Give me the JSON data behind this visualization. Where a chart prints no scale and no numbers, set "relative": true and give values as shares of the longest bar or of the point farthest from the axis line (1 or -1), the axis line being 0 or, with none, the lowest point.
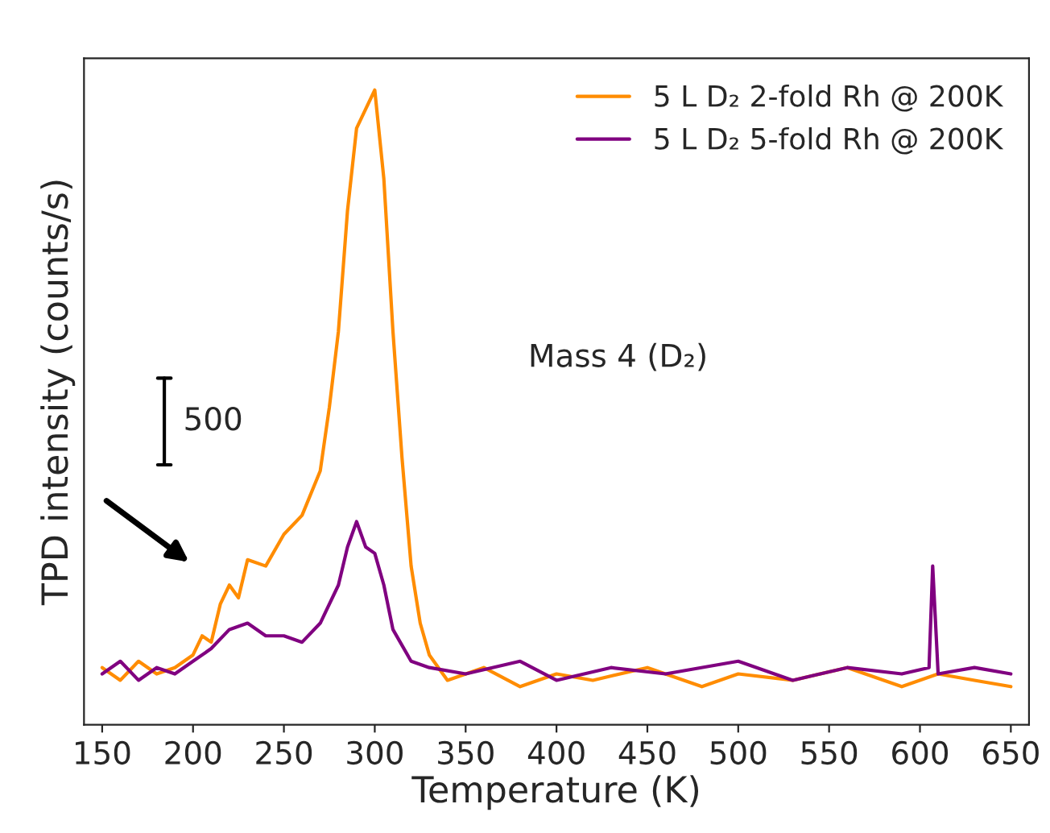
{
  "chart_data": {
    "type": "line",
    "relative": true,
    "xlabel": "Temperature (K)",
    "ylabel": "TPD intensity (counts/s)",
    "xlim": [
      140,
      660
    ],
    "xticks": [
      150,
      200,
      250,
      300,
      350,
      400,
      450,
      500,
      550,
      600,
      650
    ],
    "tick_labels": "x",
    "grid": false,
    "legend": "top right",
    "marker": "none",
    "line_style": "solid",
    "annotations": [
      "Mass 4 (D₂)",
      "500"
    ],
    "series": [
      {
        "name": "5 L D₂ 2-fold Rh @ 200K",
        "color": "#ff8c00",
        "x": [
          150,
          160,
          170,
          180,
          190,
          200,
          205,
          210,
          215,
          220,
          225,
          230,
          240,
          250,
          260,
          270,
          275,
          280,
          285,
          290,
          295,
          300,
          305,
          310,
          315,
          320,
          325,
          330,
          340,
          360,
          380,
          400,
          420,
          450,
          480,
          500,
          530,
          560,
          590,
          610,
          630,
          650
        ],
        "values": [
          0.09,
          0.07,
          0.1,
          0.08,
          0.09,
          0.11,
          0.14,
          0.13,
          0.19,
          0.22,
          0.2,
          0.26,
          0.25,
          0.3,
          0.33,
          0.4,
          0.5,
          0.62,
          0.81,
          0.94,
          0.97,
          1.0,
          0.86,
          0.62,
          0.42,
          0.25,
          0.16,
          0.11,
          0.07,
          0.09,
          0.06,
          0.08,
          0.07,
          0.09,
          0.06,
          0.08,
          0.07,
          0.09,
          0.06,
          0.08,
          0.07,
          0.06
        ]
      },
      {
        "name": "5 L D₂ 5-fold Rh @ 200K",
        "color": "#800080",
        "x": [
          150,
          160,
          170,
          180,
          190,
          200,
          210,
          220,
          230,
          240,
          250,
          260,
          270,
          280,
          285,
          290,
          295,
          300,
          305,
          310,
          320,
          330,
          350,
          380,
          400,
          430,
          460,
          500,
          530,
          560,
          590,
          605,
          607,
          610,
          630,
          650
        ],
        "values": [
          0.08,
          0.1,
          0.07,
          0.09,
          0.08,
          0.1,
          0.12,
          0.15,
          0.16,
          0.14,
          0.14,
          0.13,
          0.16,
          0.22,
          0.28,
          0.32,
          0.28,
          0.27,
          0.22,
          0.15,
          0.1,
          0.09,
          0.08,
          0.1,
          0.07,
          0.09,
          0.08,
          0.1,
          0.07,
          0.09,
          0.08,
          0.09,
          0.25,
          0.08,
          0.09,
          0.08
        ]
      }
    ]
  }
}
